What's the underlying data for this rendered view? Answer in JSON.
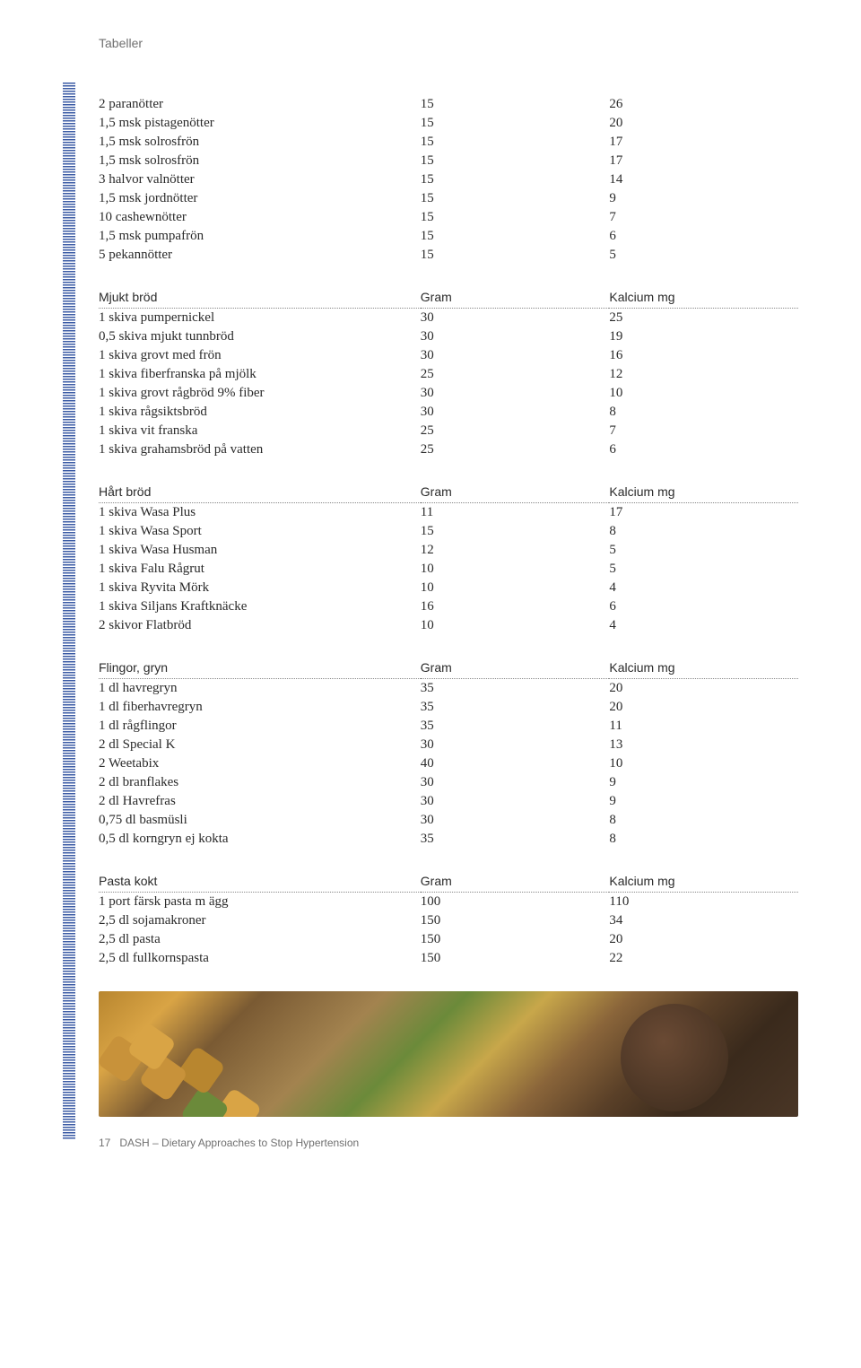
{
  "header": {
    "label": "Tabeller"
  },
  "footer": {
    "page": "17",
    "text": "DASH – Dietary Approaches to Stop Hypertension"
  },
  "colors": {
    "text": "#2a2a2a",
    "muted": "#707070",
    "dotted": "#888888",
    "stripe": "#3b5ba5",
    "background": "#ffffff"
  },
  "columns": {
    "name_width_pct": 46,
    "a_width_pct": 27,
    "b_width_pct": 27
  },
  "fonts": {
    "body": "Georgia serif 15px",
    "header_labels": "Arial 14px",
    "footer": "Arial 12px"
  },
  "nuts": {
    "rows": [
      {
        "name": "2 paranötter",
        "a": "15",
        "b": "26"
      },
      {
        "name": "1,5 msk pistagenötter",
        "a": "15",
        "b": "20"
      },
      {
        "name": "1,5 msk solrosfrön",
        "a": "15",
        "b": "17"
      },
      {
        "name": "1,5 msk solrosfrön",
        "a": "15",
        "b": "17"
      },
      {
        "name": "3 halvor valnötter",
        "a": "15",
        "b": "14"
      },
      {
        "name": "1,5 msk jordnötter",
        "a": "15",
        "b": "9"
      },
      {
        "name": "10 cashewnötter",
        "a": "15",
        "b": "7"
      },
      {
        "name": "1,5 msk pumpafrön",
        "a": "15",
        "b": "6"
      },
      {
        "name": "5 pekannötter",
        "a": "15",
        "b": "5"
      }
    ]
  },
  "softbread": {
    "header": {
      "name": "Mjukt bröd",
      "a": "Gram",
      "b": "Kalcium mg"
    },
    "rows": [
      {
        "name": "1 skiva pumpernickel",
        "a": "30",
        "b": "25"
      },
      {
        "name": "0,5 skiva mjukt tunnbröd",
        "a": "30",
        "b": "19"
      },
      {
        "name": "1 skiva grovt med frön",
        "a": "30",
        "b": "16"
      },
      {
        "name": "1 skiva fiberfranska på mjölk",
        "a": "25",
        "b": "12"
      },
      {
        "name": "1 skiva grovt rågbröd 9% fiber",
        "a": "30",
        "b": "10"
      },
      {
        "name": "1 skiva rågsiktsbröd",
        "a": "30",
        "b": "8"
      },
      {
        "name": "1 skiva vit franska",
        "a": "25",
        "b": "7"
      },
      {
        "name": "1 skiva grahamsbröd på vatten",
        "a": "25",
        "b": "6"
      }
    ]
  },
  "hardbread": {
    "header": {
      "name": "Hårt bröd",
      "a": "Gram",
      "b": "Kalcium mg"
    },
    "rows": [
      {
        "name": "1 skiva Wasa Plus",
        "a": "11",
        "b": "17"
      },
      {
        "name": "1 skiva Wasa Sport",
        "a": "15",
        "b": "8"
      },
      {
        "name": "1 skiva Wasa Husman",
        "a": "12",
        "b": "5"
      },
      {
        "name": "1 skiva Falu Rågrut",
        "a": "10",
        "b": "5"
      },
      {
        "name": "1 skiva Ryvita Mörk",
        "a": "10",
        "b": "4"
      },
      {
        "name": "1 skiva Siljans Kraftknäcke",
        "a": "16",
        "b": "6"
      },
      {
        "name": "2 skivor Flatbröd",
        "a": "10",
        "b": "4"
      }
    ]
  },
  "cereals": {
    "header": {
      "name": "Flingor, gryn",
      "a": "Gram",
      "b": "Kalcium mg"
    },
    "rows": [
      {
        "name": "1 dl havregryn",
        "a": "35",
        "b": "20"
      },
      {
        "name": "1 dl fiberhavregryn",
        "a": "35",
        "b": "20"
      },
      {
        "name": "1 dl rågflingor",
        "a": "35",
        "b": "11"
      },
      {
        "name": "2 dl Special K",
        "a": "30",
        "b": "13"
      },
      {
        "name": "2 Weetabix",
        "a": "40",
        "b": "10"
      },
      {
        "name": "2 dl branflakes",
        "a": "30",
        "b": "9"
      },
      {
        "name": "2 dl Havrefras",
        "a": "30",
        "b": "9"
      },
      {
        "name": "0,75 dl basmüsli",
        "a": "30",
        "b": "8"
      },
      {
        "name": "0,5 dl korngryn ej kokta",
        "a": "35",
        "b": "8"
      }
    ]
  },
  "pasta": {
    "header": {
      "name": "Pasta kokt",
      "a": "Gram",
      "b": "Kalcium mg"
    },
    "rows": [
      {
        "name": "1 port färsk pasta m ägg",
        "a": "100",
        "b": "110"
      },
      {
        "name": "2,5 dl sojamakroner",
        "a": "150",
        "b": "34"
      },
      {
        "name": "2,5 dl pasta",
        "a": "150",
        "b": "20"
      },
      {
        "name": "2,5 dl fullkornspasta",
        "a": "150",
        "b": "22"
      }
    ]
  }
}
